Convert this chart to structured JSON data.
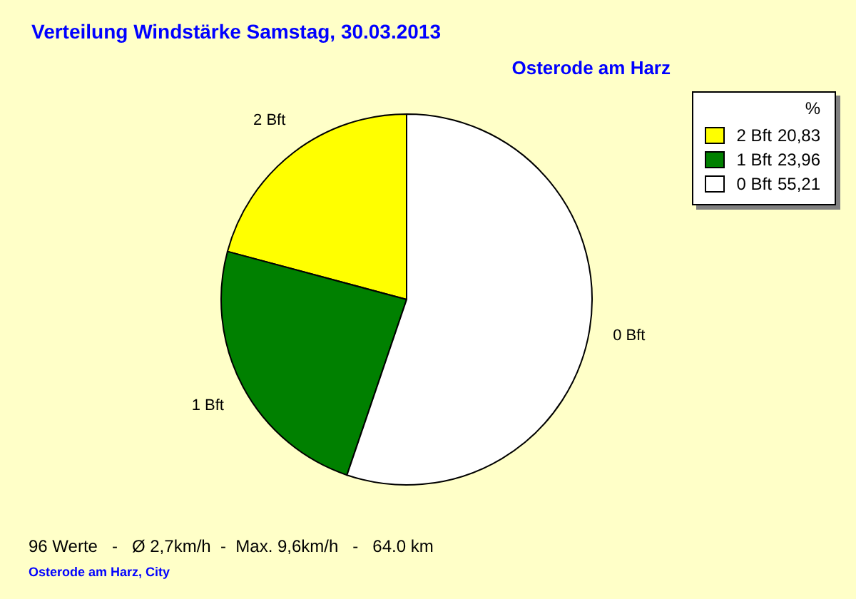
{
  "chart_data": {
    "type": "pie",
    "title": "Verteilung Windstärke  Samstag, 30.03.2013",
    "subtitle": "Osterode am Harz",
    "categories": [
      "2 Bft",
      "1 Bft",
      "0 Bft"
    ],
    "values": [
      20.83,
      23.96,
      55.21
    ],
    "value_labels": [
      "20,83",
      "23,96",
      "55,21"
    ],
    "colors": [
      "#ffff00",
      "#008000",
      "#ffffff"
    ],
    "legend_title": "%",
    "legend": "top right",
    "annotations": [
      "96 Werte   -   Ø 2,7km/h  -  Max. 9,6km/h   -   64.0 km",
      "Osterode am Harz, City"
    ]
  }
}
